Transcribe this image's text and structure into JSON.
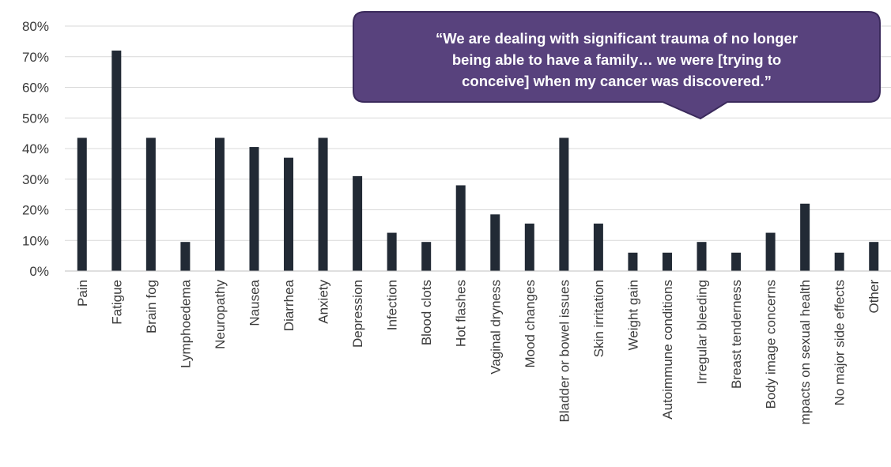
{
  "chart_data": {
    "type": "bar",
    "title": "",
    "xlabel": "",
    "ylabel": "",
    "ylim": [
      0,
      80
    ],
    "y_ticks": [
      "0%",
      "10%",
      "20%",
      "30%",
      "40%",
      "50%",
      "60%",
      "70%",
      "80%"
    ],
    "grid": true,
    "categories": [
      "Pain",
      "Fatigue",
      "Brain fog",
      "Lymphoedema",
      "Neuropathy",
      "Nausea",
      "Diarrhea",
      "Anxiety",
      "Depression",
      "Infection",
      "Blood clots",
      "Hot flashes",
      "Vaginal dryness",
      "Mood changes",
      "Bladder or bowel issues",
      "Skin irritation",
      "Weight gain",
      "Autoimmune conditions",
      "Irregular bleeding",
      "Breast tenderness",
      "Body image concerns",
      "mpacts on sexual health",
      "No major side effects",
      "Other"
    ],
    "values": [
      43.5,
      72,
      43.5,
      9.5,
      43.5,
      40.5,
      37,
      43.5,
      31,
      12.5,
      9.5,
      28,
      18.5,
      15.5,
      43.5,
      15.5,
      6,
      6,
      9.5,
      6,
      12.5,
      22,
      6,
      9.5
    ],
    "colors": {
      "bar": "#222a35",
      "grid": "#d9d9d9",
      "callout_fill": "#58427d",
      "callout_stroke": "#3b2a5c"
    }
  },
  "callout": {
    "lines": [
      "“We are dealing with significant trauma of no longer",
      "being able to have a family… we were [trying to",
      "conceive] when my cancer was discovered.”"
    ]
  }
}
